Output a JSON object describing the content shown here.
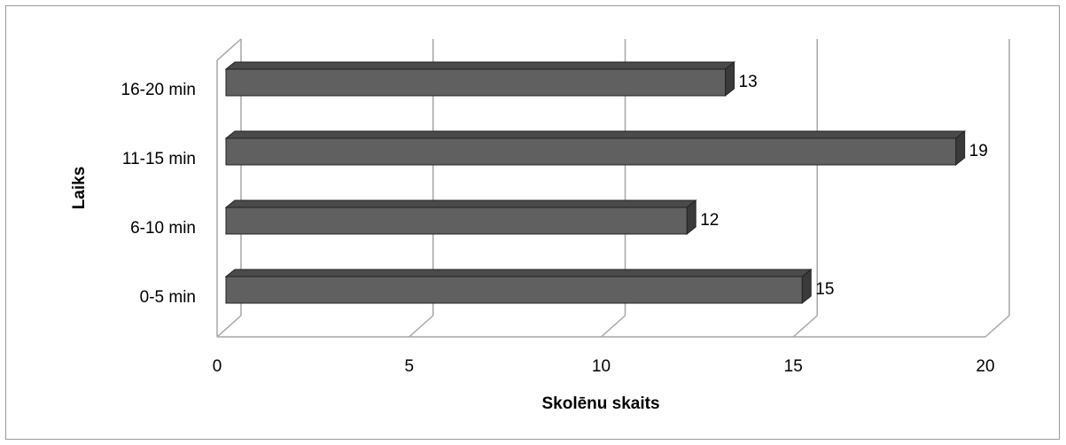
{
  "chart_data": {
    "type": "bar",
    "orientation": "horizontal",
    "categories": [
      "0-5 min",
      "6-10 min",
      "11-15 min",
      "16-20 min"
    ],
    "values": [
      15,
      12,
      19,
      13
    ],
    "color": "#606060",
    "xlabel": "Skolēnu skaits",
    "ylabel": "Laiks",
    "xlim": [
      0,
      20
    ],
    "xticks": [
      0,
      5,
      10,
      15,
      20
    ],
    "grid": true
  }
}
